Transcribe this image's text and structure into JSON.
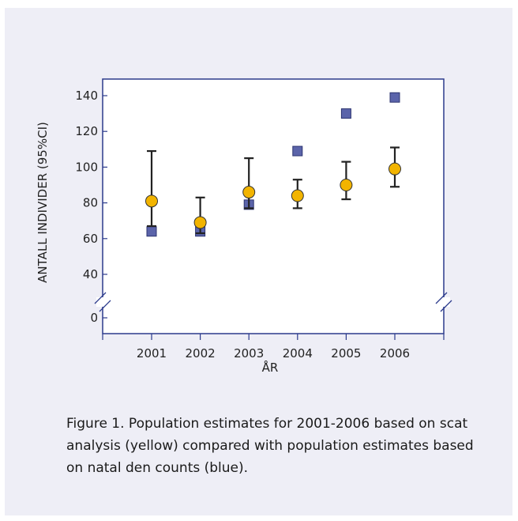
{
  "chart_data": {
    "type": "scatter",
    "xlabel": "ÅR",
    "ylabel": "ANTALL INDIVIDER (95%CI)",
    "categories": [
      "2001",
      "2002",
      "2003",
      "2004",
      "2005",
      "2006"
    ],
    "yticks": [
      "0",
      "40",
      "60",
      "80",
      "100",
      "120",
      "140"
    ],
    "ylim": [
      0,
      150
    ],
    "axis_break": true,
    "series": [
      {
        "marker": "square",
        "color": "#5b64aa",
        "values": [
          64,
          64,
          79,
          109,
          130,
          139
        ]
      },
      {
        "marker": "circle",
        "color": "#f2b400",
        "values": [
          81,
          69,
          86,
          84,
          90,
          99
        ],
        "ci_low": [
          67,
          63,
          77,
          77,
          82,
          89
        ],
        "ci_high": [
          109,
          83,
          105,
          93,
          103,
          111
        ]
      }
    ],
    "grid": false,
    "legend": false
  },
  "caption": "Figure 1. Population estimates for 2001-2006 based on scat analysis (yellow) compared with population estimates based on natal den counts (blue)."
}
